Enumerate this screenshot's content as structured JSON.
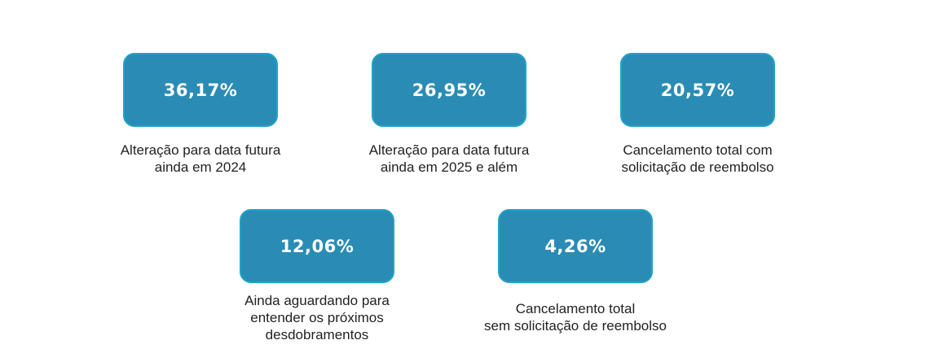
{
  "colors": {
    "box_fill": "#2a8cb4",
    "box_border": "#1fa3c8",
    "value_text": "#ffffff",
    "label_text": "#222222"
  },
  "stats": [
    {
      "value": "36,17%",
      "label_lines": [
        "Alteração para data futura",
        "ainda em 2024"
      ]
    },
    {
      "value": "26,95%",
      "label_lines": [
        "Alteração para data futura",
        "ainda em 2025 e além"
      ]
    },
    {
      "value": "20,57%",
      "label_lines": [
        "Cancelamento total com",
        "solicitação de reembolso"
      ]
    },
    {
      "value": "12,06%",
      "label_lines": [
        "Ainda aguardando para",
        "entender os próximos",
        "desdobramentos"
      ]
    },
    {
      "value": "4,26%",
      "label_lines": [
        "Cancelamento total",
        "sem solicitação de reembolso"
      ]
    }
  ]
}
